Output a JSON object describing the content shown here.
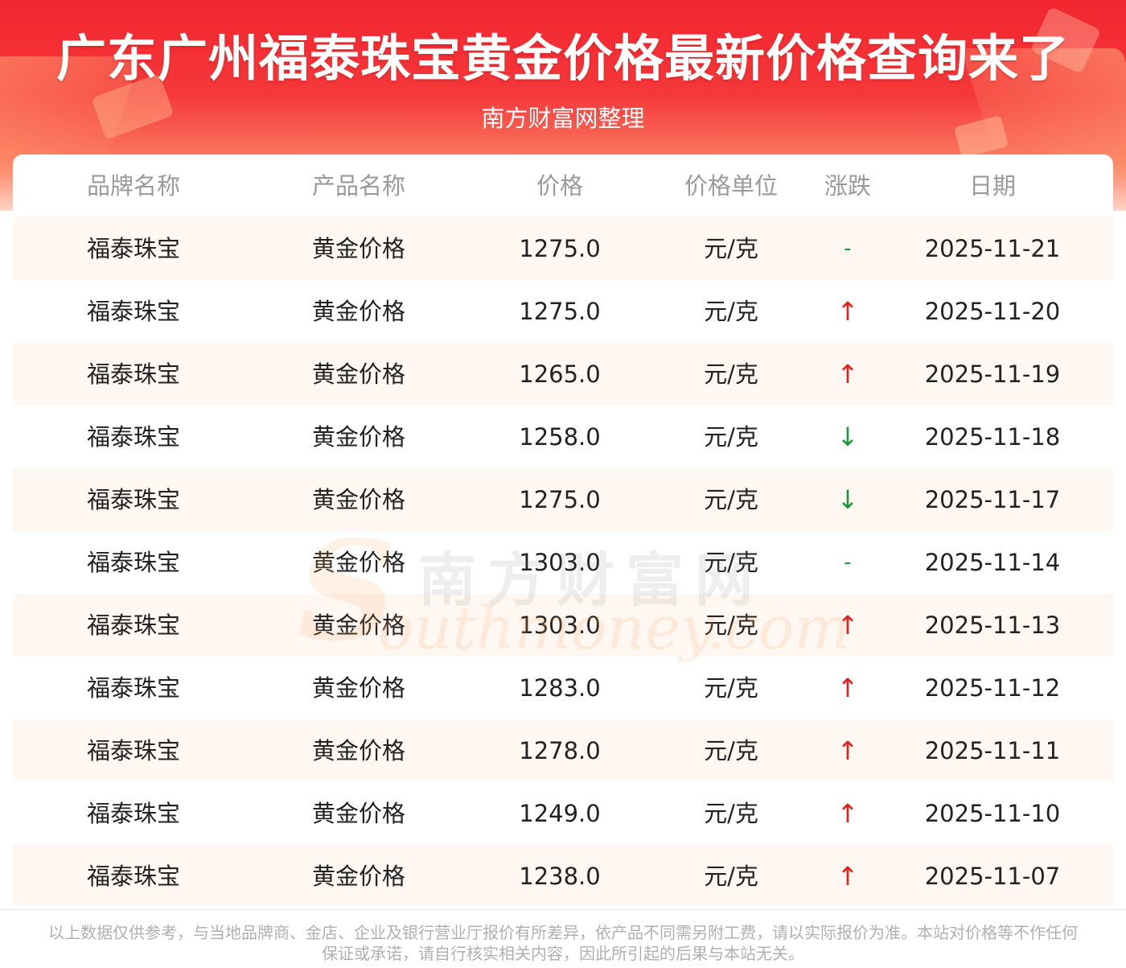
{
  "banner": {
    "title": "广东广州福泰珠宝黄金价格最新价格查询来了",
    "subtitle": "南方财富网整理"
  },
  "table": {
    "headers": [
      "品牌名称",
      "产品名称",
      "价格",
      "价格单位",
      "涨跌",
      "日期"
    ],
    "rows": [
      {
        "brand": "福泰珠宝",
        "product": "黄金价格",
        "price": "1275.0",
        "unit": "元/克",
        "change": "-",
        "change_type": "flat",
        "date": "2025-11-21"
      },
      {
        "brand": "福泰珠宝",
        "product": "黄金价格",
        "price": "1275.0",
        "unit": "元/克",
        "change": "↑",
        "change_type": "up",
        "date": "2025-11-20"
      },
      {
        "brand": "福泰珠宝",
        "product": "黄金价格",
        "price": "1265.0",
        "unit": "元/克",
        "change": "↑",
        "change_type": "up",
        "date": "2025-11-19"
      },
      {
        "brand": "福泰珠宝",
        "product": "黄金价格",
        "price": "1258.0",
        "unit": "元/克",
        "change": "↓",
        "change_type": "down",
        "date": "2025-11-18"
      },
      {
        "brand": "福泰珠宝",
        "product": "黄金价格",
        "price": "1275.0",
        "unit": "元/克",
        "change": "↓",
        "change_type": "down",
        "date": "2025-11-17"
      },
      {
        "brand": "福泰珠宝",
        "product": "黄金价格",
        "price": "1303.0",
        "unit": "元/克",
        "change": "-",
        "change_type": "flat",
        "date": "2025-11-14"
      },
      {
        "brand": "福泰珠宝",
        "product": "黄金价格",
        "price": "1303.0",
        "unit": "元/克",
        "change": "↑",
        "change_type": "up",
        "date": "2025-11-13"
      },
      {
        "brand": "福泰珠宝",
        "product": "黄金价格",
        "price": "1283.0",
        "unit": "元/克",
        "change": "↑",
        "change_type": "up",
        "date": "2025-11-12"
      },
      {
        "brand": "福泰珠宝",
        "product": "黄金价格",
        "price": "1278.0",
        "unit": "元/克",
        "change": "↑",
        "change_type": "up",
        "date": "2025-11-11"
      },
      {
        "brand": "福泰珠宝",
        "product": "黄金价格",
        "price": "1249.0",
        "unit": "元/克",
        "change": "↑",
        "change_type": "up",
        "date": "2025-11-10"
      },
      {
        "brand": "福泰珠宝",
        "product": "黄金价格",
        "price": "1238.0",
        "unit": "元/克",
        "change": "↑",
        "change_type": "up",
        "date": "2025-11-07"
      }
    ]
  },
  "watermark": {
    "cn": "南方财富网",
    "en_initial": "S",
    "en_rest": "outhmoney.com"
  },
  "footer": {
    "disclaimer": "以上数据仅供参考，与当地品牌商、金店、企业及银行营业厅报价有所差异，依产品不同需另附工费，请以实际报价为准。本站对价格等不作任何保证或承诺，请自行核实相关内容，因此所引起的后果与本站无关。"
  },
  "colors": {
    "banner_top": "#f2262f",
    "banner_bottom": "#ffd4c6",
    "row_alt": "#fff7f2",
    "up": "#e8201a",
    "down": "#1a9a3a",
    "header_text": "#9a9a9a",
    "footer_text": "#b0b0b0"
  }
}
